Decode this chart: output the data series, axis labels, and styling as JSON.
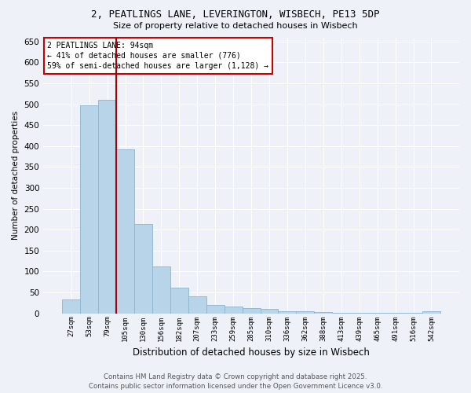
{
  "title_line1": "2, PEATLINGS LANE, LEVERINGTON, WISBECH, PE13 5DP",
  "title_line2": "Size of property relative to detached houses in Wisbech",
  "xlabel": "Distribution of detached houses by size in Wisbech",
  "ylabel": "Number of detached properties",
  "categories": [
    "27sqm",
    "53sqm",
    "79sqm",
    "105sqm",
    "130sqm",
    "156sqm",
    "182sqm",
    "207sqm",
    "233sqm",
    "259sqm",
    "285sqm",
    "310sqm",
    "336sqm",
    "362sqm",
    "388sqm",
    "413sqm",
    "439sqm",
    "465sqm",
    "491sqm",
    "516sqm",
    "542sqm"
  ],
  "values": [
    33,
    497,
    510,
    393,
    213,
    112,
    62,
    40,
    20,
    16,
    12,
    10,
    5,
    5,
    3,
    2,
    1,
    1,
    1,
    1,
    5
  ],
  "bar_color": "#b8d4e8",
  "bar_edgecolor": "#8cb4d0",
  "background_color": "#eef2f8",
  "grid_color": "#ffffff",
  "vline_x": 2.5,
  "vline_color": "#aa0000",
  "annotation_text": "2 PEATLINGS LANE: 94sqm\n← 41% of detached houses are smaller (776)\n59% of semi-detached houses are larger (1,128) →",
  "annotation_box_color": "#ffffff",
  "annotation_box_edgecolor": "#cc0000",
  "footer_line1": "Contains HM Land Registry data © Crown copyright and database right 2025.",
  "footer_line2": "Contains public sector information licensed under the Open Government Licence v3.0.",
  "ylim": [
    0,
    660
  ],
  "yticks": [
    0,
    50,
    100,
    150,
    200,
    250,
    300,
    350,
    400,
    450,
    500,
    550,
    600,
    650
  ]
}
